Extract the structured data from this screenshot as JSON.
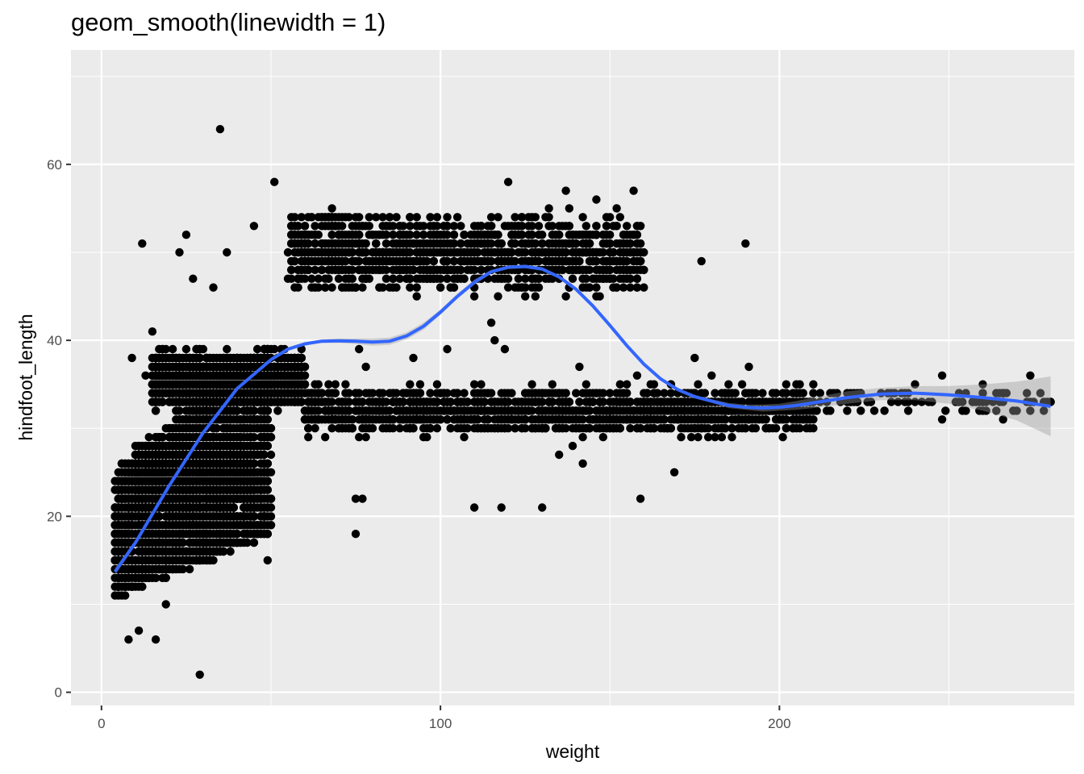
{
  "chart_data": {
    "type": "scatter",
    "title": "geom_smooth(linewidth = 1)",
    "xlabel": "weight",
    "ylabel": "hindfoot_length",
    "xlim": [
      -9,
      287
    ],
    "ylim": [
      -1.5,
      73
    ],
    "x_ticks": [
      0,
      100,
      200
    ],
    "y_ticks": [
      0,
      20,
      40,
      60
    ],
    "grid": true,
    "colors": {
      "panel": "#ebebeb",
      "grid": "#ffffff",
      "points": "#000000",
      "smooth": "#3366ff",
      "ribbon": "#999999"
    },
    "clusters": [
      {
        "x": [
          4,
          50
        ],
        "y_at_x0": [
          11,
          25
        ],
        "y_at_x1": [
          18,
          40
        ],
        "n": 2600
      },
      {
        "x": [
          15,
          60
        ],
        "y": [
          32,
          39
        ],
        "n": 1600
      },
      {
        "x": [
          10,
          45
        ],
        "y": [
          19,
          29
        ],
        "n": 1200
      },
      {
        "x": [
          55,
          160
        ],
        "y": [
          45,
          55
        ],
        "n": 1300
      },
      {
        "x": [
          60,
          210
        ],
        "y": [
          29,
          35
        ],
        "n": 1500
      },
      {
        "x": [
          210,
          280
        ],
        "y": [
          31,
          35
        ],
        "n": 90
      }
    ],
    "outliers": [
      {
        "x": 35,
        "y": 64
      },
      {
        "x": 51,
        "y": 58
      },
      {
        "x": 29,
        "y": 2
      },
      {
        "x": 12,
        "y": 51
      },
      {
        "x": 25,
        "y": 52
      },
      {
        "x": 23,
        "y": 50
      },
      {
        "x": 45,
        "y": 53
      },
      {
        "x": 37,
        "y": 50
      },
      {
        "x": 13,
        "y": 36
      },
      {
        "x": 15,
        "y": 41
      },
      {
        "x": 9,
        "y": 38
      },
      {
        "x": 27,
        "y": 47
      },
      {
        "x": 33,
        "y": 46
      },
      {
        "x": 49,
        "y": 15
      },
      {
        "x": 16,
        "y": 6
      },
      {
        "x": 8,
        "y": 6
      },
      {
        "x": 11,
        "y": 7
      },
      {
        "x": 19,
        "y": 10
      },
      {
        "x": 75,
        "y": 18
      },
      {
        "x": 75,
        "y": 22
      },
      {
        "x": 77,
        "y": 22
      },
      {
        "x": 110,
        "y": 21
      },
      {
        "x": 118,
        "y": 21
      },
      {
        "x": 130,
        "y": 21
      },
      {
        "x": 142,
        "y": 26
      },
      {
        "x": 159,
        "y": 22
      },
      {
        "x": 169,
        "y": 25
      },
      {
        "x": 153,
        "y": 33
      },
      {
        "x": 76,
        "y": 39
      },
      {
        "x": 78,
        "y": 37
      },
      {
        "x": 92,
        "y": 38
      },
      {
        "x": 102,
        "y": 39
      },
      {
        "x": 115,
        "y": 42
      },
      {
        "x": 116,
        "y": 40
      },
      {
        "x": 119,
        "y": 39
      },
      {
        "x": 120,
        "y": 58
      },
      {
        "x": 137,
        "y": 57
      },
      {
        "x": 146,
        "y": 56
      },
      {
        "x": 157,
        "y": 57
      },
      {
        "x": 177,
        "y": 49
      },
      {
        "x": 190,
        "y": 51
      },
      {
        "x": 175,
        "y": 38
      },
      {
        "x": 180,
        "y": 36
      },
      {
        "x": 191,
        "y": 37
      },
      {
        "x": 141,
        "y": 37
      },
      {
        "x": 158,
        "y": 36
      },
      {
        "x": 274,
        "y": 36
      },
      {
        "x": 270,
        "y": 32
      },
      {
        "x": 278,
        "y": 32
      },
      {
        "x": 280,
        "y": 33
      },
      {
        "x": 265,
        "y": 34
      },
      {
        "x": 260,
        "y": 34
      },
      {
        "x": 248,
        "y": 36
      },
      {
        "x": 240,
        "y": 35
      },
      {
        "x": 135,
        "y": 27
      },
      {
        "x": 139,
        "y": 28
      }
    ],
    "smooth": {
      "x": [
        4,
        10,
        20,
        30,
        40,
        50,
        55,
        60,
        65,
        70,
        75,
        80,
        85,
        90,
        95,
        100,
        105,
        110,
        115,
        120,
        125,
        130,
        135,
        140,
        145,
        150,
        155,
        160,
        165,
        170,
        175,
        180,
        185,
        190,
        195,
        200,
        205,
        210,
        220,
        230,
        240,
        250,
        260,
        270,
        280
      ],
      "y": [
        13.7,
        17,
        23.5,
        29.5,
        34.5,
        37.8,
        39,
        39.6,
        39.9,
        39.95,
        39.9,
        39.8,
        39.9,
        40.5,
        41.6,
        43.2,
        45,
        46.6,
        47.8,
        48.3,
        48.4,
        48.1,
        47.2,
        45.8,
        43.9,
        41.7,
        39.4,
        37.3,
        35.6,
        34.4,
        33.6,
        33.1,
        32.6,
        32.4,
        32.3,
        32.4,
        32.6,
        32.9,
        33.5,
        33.9,
        34,
        33.8,
        33.5,
        33.1,
        32.5
      ],
      "se_upper": [
        14.1,
        17.3,
        23.7,
        29.7,
        34.7,
        38,
        39.2,
        39.8,
        40.1,
        40.2,
        40.2,
        40.2,
        40.3,
        40.9,
        42,
        43.5,
        45.3,
        46.9,
        48,
        48.5,
        48.6,
        48.3,
        47.4,
        46,
        44.1,
        41.9,
        39.6,
        37.5,
        35.8,
        34.6,
        33.8,
        33.3,
        32.9,
        32.7,
        32.7,
        32.8,
        33.1,
        33.5,
        34.2,
        34.6,
        34.8,
        34.8,
        35,
        35.3,
        35.9
      ],
      "se_lower": [
        13.3,
        16.7,
        23.3,
        29.3,
        34.3,
        37.6,
        38.8,
        39.4,
        39.7,
        39.7,
        39.6,
        39.4,
        39.5,
        40.1,
        41.2,
        42.9,
        44.7,
        46.3,
        47.6,
        48.1,
        48.2,
        47.9,
        47,
        45.6,
        43.7,
        41.5,
        39.2,
        37.1,
        35.4,
        34.2,
        33.4,
        32.9,
        32.3,
        32.1,
        31.9,
        32,
        32.1,
        32.3,
        32.8,
        33.2,
        33.2,
        32.8,
        32,
        30.9,
        29.1
      ]
    }
  }
}
